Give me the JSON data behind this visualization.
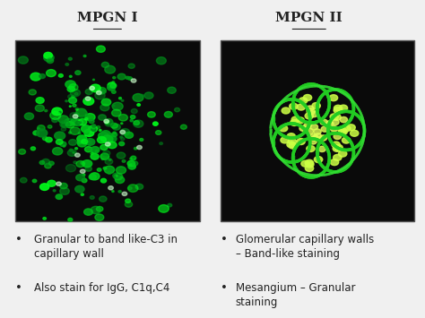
{
  "title_left": "MPGN I",
  "title_right": "MPGN II",
  "background_color": "#f0f0f0",
  "title_fontsize": 11,
  "bullet_fontsize": 8.5,
  "left_bullets": [
    "Granular to band like-C3 in\ncapillary wall",
    "Also stain for IgG, C1q,C4"
  ],
  "right_bullets": [
    "Glomerular capillary walls\n– Band-like staining",
    "Mesangium – Granular\nstaining"
  ],
  "image_bg": "#0a0a0a",
  "text_color": "#222222",
  "green_dark": "#22cc22",
  "green_bright": "#33dd33",
  "yellow_green": "#ccff44",
  "white_green": "#ccffcc"
}
